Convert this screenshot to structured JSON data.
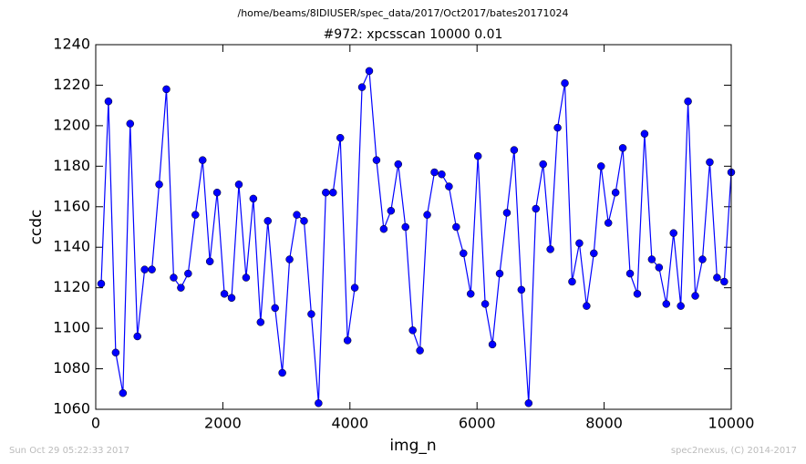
{
  "chart_data": {
    "type": "line",
    "suptitle": "/home/beams/8IDIUSER/spec_data/2017/Oct2017/bates20171024",
    "title": "#972: xpcsscan 10000 0.01",
    "xlabel": "img_n",
    "ylabel": "ccdc",
    "footer_left": "Sun Oct 29 05:22:33 2017",
    "footer_right": "spec2nexus, (C) 2014-2017",
    "x": [
      86,
      200,
      314,
      428,
      542,
      656,
      770,
      884,
      998,
      1112,
      1226,
      1340,
      1454,
      1568,
      1682,
      1796,
      1910,
      2024,
      2138,
      2252,
      2366,
      2480,
      2594,
      2708,
      2822,
      2936,
      3050,
      3164,
      3278,
      3392,
      3506,
      3620,
      3734,
      3848,
      3962,
      4076,
      4190,
      4304,
      4418,
      4532,
      4646,
      4760,
      4874,
      4988,
      5102,
      5216,
      5330,
      5444,
      5558,
      5672,
      5786,
      5900,
      6014,
      6128,
      6242,
      6356,
      6470,
      6584,
      6698,
      6812,
      6926,
      7040,
      7154,
      7268,
      7382,
      7496,
      7610,
      7724,
      7838,
      7952,
      8066,
      8180,
      8294,
      8408,
      8522,
      8636,
      8750,
      8864,
      8978,
      9092,
      9206,
      9320,
      9434,
      9548,
      9662,
      9776,
      9890,
      10000
    ],
    "series": [
      {
        "color": "#0000ff",
        "values": [
          1122,
          1212,
          1088,
          1068,
          1201,
          1096,
          1129,
          1129,
          1171,
          1218,
          1125,
          1120,
          1127,
          1156,
          1183,
          1133,
          1167,
          1117,
          1115,
          1171,
          1125,
          1164,
          1103,
          1153,
          1110,
          1078,
          1134,
          1156,
          1153,
          1107,
          1063,
          1167,
          1167,
          1194,
          1094,
          1120,
          1219,
          1227,
          1183,
          1149,
          1158,
          1181,
          1150,
          1099,
          1089,
          1156,
          1177,
          1176,
          1170,
          1150,
          1137,
          1117,
          1185,
          1112,
          1092,
          1127,
          1157,
          1188,
          1119,
          1063,
          1159,
          1181,
          1139,
          1199,
          1221,
          1123,
          1142,
          1111,
          1137,
          1180,
          1152,
          1167,
          1189,
          1127,
          1117,
          1196,
          1134,
          1130,
          1112,
          1147,
          1111,
          1212,
          1116,
          1134,
          1182,
          1125,
          1123,
          1177
        ]
      }
    ],
    "xlim": [
      0,
      10000
    ],
    "xticks": [
      0,
      2000,
      4000,
      6000,
      8000,
      10000
    ],
    "ylim": [
      1060,
      1240
    ],
    "yticks": [
      1060,
      1080,
      1100,
      1120,
      1140,
      1160,
      1180,
      1200,
      1220,
      1240
    ]
  }
}
